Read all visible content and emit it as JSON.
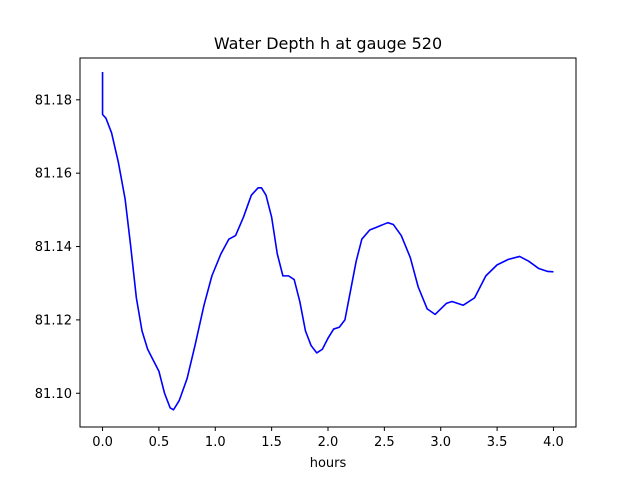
{
  "chart_data": {
    "type": "line",
    "title": "Water Depth h at gauge 520",
    "xlabel": "hours",
    "ylabel": "",
    "xlim": [
      -0.2,
      4.2
    ],
    "ylim": [
      81.0908,
      81.1914
    ],
    "xticks": [
      0.0,
      0.5,
      1.0,
      1.5,
      2.0,
      2.5,
      3.0,
      3.5,
      4.0
    ],
    "xtick_labels": [
      "0.0",
      "0.5",
      "1.0",
      "1.5",
      "2.0",
      "2.5",
      "3.0",
      "3.5",
      "4.0"
    ],
    "yticks": [
      81.1,
      81.12,
      81.14,
      81.16,
      81.18
    ],
    "ytick_labels": [
      "81.10",
      "81.12",
      "81.14",
      "81.16",
      "81.18"
    ],
    "grid": false,
    "line_color": "#0000ff",
    "series": [
      {
        "x": [
          0.0,
          0.0,
          0.03,
          0.08,
          0.14,
          0.2,
          0.25,
          0.3,
          0.35,
          0.4,
          0.45,
          0.5,
          0.55,
          0.6,
          0.63,
          0.68,
          0.75,
          0.82,
          0.9,
          0.97,
          1.05,
          1.12,
          1.18,
          1.25,
          1.32,
          1.38,
          1.41,
          1.45,
          1.5,
          1.55,
          1.6,
          1.65,
          1.7,
          1.75,
          1.8,
          1.85,
          1.9,
          1.95,
          2.0,
          2.05,
          2.1,
          2.15,
          2.2,
          2.25,
          2.3,
          2.37,
          2.45,
          2.53,
          2.58,
          2.65,
          2.73,
          2.8,
          2.88,
          2.95,
          3.0,
          3.05,
          3.1,
          3.2,
          3.3,
          3.4,
          3.5,
          3.6,
          3.7,
          3.78,
          3.87,
          3.95,
          4.0
        ],
        "y": [
          81.1876,
          81.176,
          81.175,
          81.171,
          81.163,
          81.153,
          81.14,
          81.126,
          81.117,
          81.112,
          81.109,
          81.106,
          81.1,
          81.096,
          81.0955,
          81.098,
          81.104,
          81.113,
          81.124,
          81.132,
          81.138,
          81.142,
          81.143,
          81.148,
          81.154,
          81.156,
          81.156,
          81.154,
          81.148,
          81.138,
          81.132,
          81.132,
          81.131,
          81.125,
          81.117,
          81.113,
          81.111,
          81.112,
          81.115,
          81.1175,
          81.118,
          81.12,
          81.128,
          81.136,
          81.142,
          81.1445,
          81.1455,
          81.1465,
          81.146,
          81.143,
          81.137,
          81.129,
          81.123,
          81.1215,
          81.123,
          81.1245,
          81.125,
          81.124,
          81.126,
          81.132,
          81.135,
          81.1365,
          81.1373,
          81.136,
          81.134,
          81.1332,
          81.1331
        ]
      }
    ]
  }
}
